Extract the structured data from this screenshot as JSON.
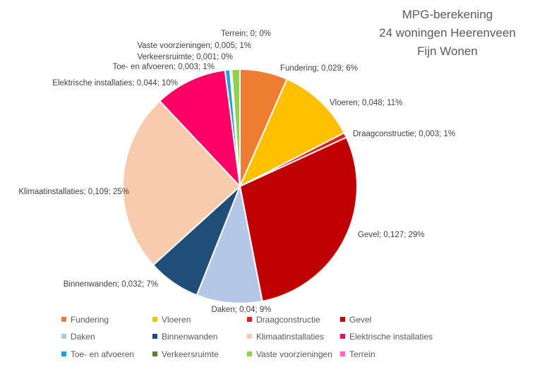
{
  "chart_data": {
    "type": "pie",
    "title_lines": [
      "MPG-berekening",
      "24 woningen Heerenveen",
      "Fijn Wonen"
    ],
    "slices": [
      {
        "name": "Fundering",
        "value": 0.029,
        "percent": "6%",
        "color": "#ED7D31",
        "label": "Fundering; 0,029; 6%"
      },
      {
        "name": "Vloeren",
        "value": 0.048,
        "percent": "11%",
        "color": "#FFC000",
        "label": "Vloeren; 0,048; 11%"
      },
      {
        "name": "Draagconstructie",
        "value": 0.003,
        "percent": "1%",
        "color": "#E02020",
        "label": "Draagconstructie; 0,003; 1%"
      },
      {
        "name": "Gevel",
        "value": 0.127,
        "percent": "29%",
        "color": "#C00000",
        "label": "Gevel; 0,127; 29%"
      },
      {
        "name": "Daken",
        "value": 0.04,
        "percent": "9%",
        "color": "#B4C7E7",
        "label": "Daken; 0,04; 9%"
      },
      {
        "name": "Binnenwanden",
        "value": 0.032,
        "percent": "7%",
        "color": "#1F4E79",
        "label": "Binnenwanden; 0,032; 7%"
      },
      {
        "name": "Klimaatinstallaties",
        "value": 0.109,
        "percent": "25%",
        "color": "#F8CBAD",
        "label": "Klimaatinstallaties; 0,109; 25%"
      },
      {
        "name": "Elektrische installaties",
        "value": 0.044,
        "percent": "10%",
        "color": "#FF0066",
        "label": "Elektrische installaties; 0,044; 10%"
      },
      {
        "name": "Toe- en afvoeren",
        "value": 0.003,
        "percent": "1%",
        "color": "#1CA0DA",
        "label": "Toe- en afvoeren; 0,003; 1%"
      },
      {
        "name": "Verkeersruimte",
        "value": 0.001,
        "percent": "0%",
        "color": "#548235",
        "label": "Verkeersruimte; 0,001; 0%"
      },
      {
        "name": "Vaste voorzieningen",
        "value": 0.005,
        "percent": "1%",
        "color": "#92D050",
        "label": "Vaste voorzieningen; 0,005; 1%"
      },
      {
        "name": "Terrein",
        "value": 0,
        "percent": "0%",
        "color": "#FF66CC",
        "label": "Terrein; 0; 0%"
      }
    ],
    "legend_position": "bottom",
    "legend": [
      "Fundering",
      "Vloeren",
      "Draagconstructie",
      "Gevel",
      "Daken",
      "Binnenwanden",
      "Klimaatinstallaties",
      "Elektrische installaties",
      "Toe- en afvoeren",
      "Verkeersruimte",
      "Vaste voorzieningen",
      "Terrein"
    ]
  }
}
